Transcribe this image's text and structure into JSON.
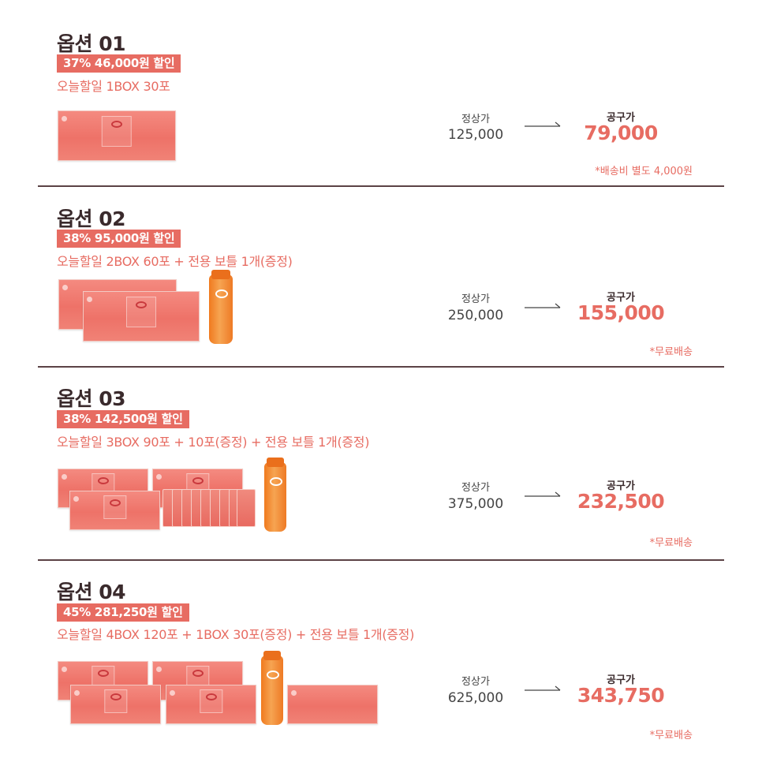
{
  "labels": {
    "regular_price": "정상가",
    "group_price": "공구가"
  },
  "options": [
    {
      "title": "옵션 01",
      "badge": "37% 46,000원 할인",
      "description": "오늘할일 1BOX 30포",
      "regular_price": "125,000",
      "group_price": "79,000",
      "shipping": "*배송비 별도 4,000원"
    },
    {
      "title": "옵션 02",
      "badge": "38% 95,000원 할인",
      "description": "오늘할일 2BOX 60포 + 전용 보틀 1개(증정)",
      "regular_price": "250,000",
      "group_price": "155,000",
      "shipping": "*무료배송"
    },
    {
      "title": "옵션 03",
      "badge": "38% 142,500원 할인",
      "description": "오늘할일 3BOX 90포 + 10포(증정) + 전용 보틀 1개(증정)",
      "regular_price": "375,000",
      "group_price": "232,500",
      "shipping": "*무료배송"
    },
    {
      "title": "옵션 04",
      "badge": "45% 281,250원 할인",
      "description": "오늘할일 4BOX 120포 + 1BOX 30포(증정) + 전용 보틀 1개(증정)",
      "regular_price": "625,000",
      "group_price": "343,750",
      "shipping": "*무료배송"
    }
  ],
  "colors": {
    "accent": "#e76c62",
    "title": "#3a2a2c",
    "divider": "#5b4245"
  }
}
